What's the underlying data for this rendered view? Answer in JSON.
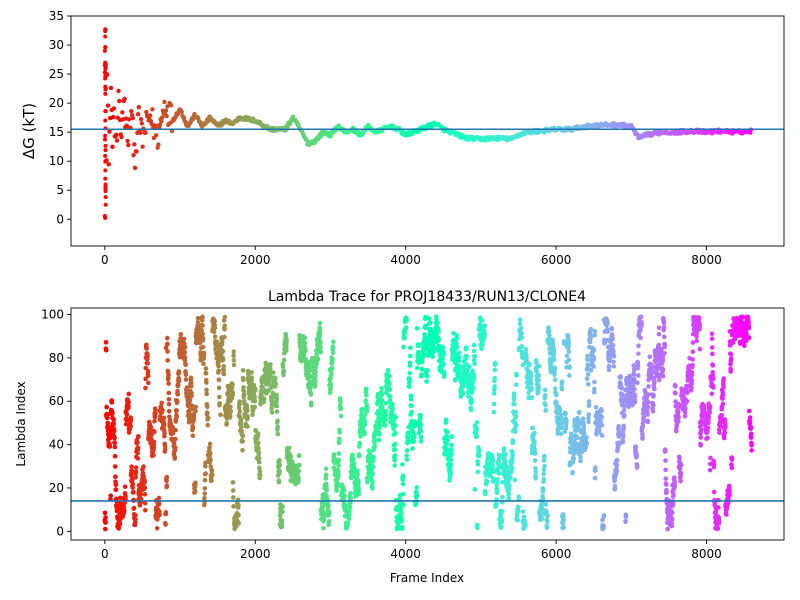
{
  "chart_data": [
    {
      "type": "scatter",
      "title": "",
      "xlabel": "",
      "ylabel": "ΔG (kT)",
      "xlim": [
        -450,
        9030
      ],
      "ylim": [
        -4.6,
        35
      ],
      "xticks": [
        0,
        2000,
        4000,
        6000,
        8000
      ],
      "yticks": [
        0,
        5,
        10,
        15,
        20,
        25,
        30,
        35
      ],
      "colormap": "rainbow",
      "color_mapped_to": "frame index (reversed: early = red, late = purple)",
      "frame_range": [
        0,
        8600
      ],
      "reference_line": {
        "y": 15.5,
        "color": "#1f77b4"
      },
      "series_trace": {
        "x": [
          0,
          10,
          20,
          30,
          40,
          50,
          60,
          80,
          100,
          120,
          150,
          180,
          220,
          260,
          300,
          350,
          400,
          450,
          500,
          550,
          600,
          700,
          800,
          900,
          1000,
          1100,
          1200,
          1300,
          1400,
          1500,
          1600,
          1700,
          1800,
          2000,
          2200,
          2400,
          2500,
          2600,
          2700,
          2800,
          2900,
          3000,
          3100,
          3200,
          3300,
          3400,
          3500,
          3600,
          3700,
          3800,
          3900,
          4000,
          4200,
          4400,
          4500,
          4600,
          4800,
          5000,
          5200,
          5400,
          5500,
          5600,
          5800,
          6000,
          6200,
          6400,
          6600,
          6800,
          7000,
          7100,
          7200,
          7400,
          7600,
          7800,
          8000,
          8200,
          8400,
          8600
        ],
        "y": [
          10,
          30,
          5,
          26,
          20,
          8,
          12,
          22,
          14,
          19,
          12,
          21,
          15,
          20,
          13,
          18,
          11,
          17,
          14,
          16,
          18,
          14,
          20,
          17,
          19,
          16,
          18,
          16,
          17.5,
          16,
          17,
          16.5,
          17.5,
          17,
          15.5,
          15.5,
          17.5,
          15.5,
          13,
          13.5,
          15,
          14.5,
          16,
          15,
          15.5,
          14.5,
          16,
          15,
          15.5,
          16,
          15.5,
          14.5,
          15.5,
          16.5,
          15.5,
          15,
          14,
          13.8,
          14,
          13.8,
          14.5,
          15,
          15.2,
          15.5,
          15.5,
          16,
          16.2,
          16.3,
          16,
          14,
          14.5,
          15,
          15,
          15.2,
          15,
          15.2,
          15,
          15.2
        ]
      }
    },
    {
      "type": "scatter",
      "title": "Lambda Trace for PROJ18433/RUN13/CLONE4",
      "xlabel": "Frame Index",
      "ylabel": "Lambda Index",
      "xlim": [
        -450,
        9030
      ],
      "ylim": [
        -4,
        103
      ],
      "xticks": [
        0,
        2000,
        4000,
        6000,
        8000
      ],
      "yticks": [
        0,
        20,
        40,
        60,
        80,
        100
      ],
      "colormap": "rainbow",
      "color_mapped_to": "frame index (reversed: early = red, late = purple)",
      "frame_range": [
        0,
        8600
      ],
      "lambda_range": [
        1,
        99
      ],
      "reference_line": {
        "y": 14,
        "color": "#1f77b4"
      }
    }
  ]
}
